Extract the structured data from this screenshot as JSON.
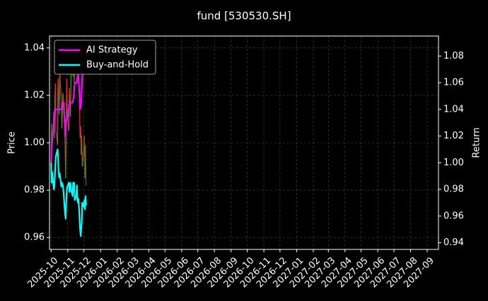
{
  "chart_data": {
    "type": "line",
    "title": "fund [530530.SH]",
    "ylabel_left": "Price",
    "ylabel_right": "Return",
    "grid": true,
    "legend_position": "top-left",
    "ylim_left": [
      0.955,
      1.045
    ],
    "ylim_right": [
      0.935,
      1.095
    ],
    "yticks_left": [
      "0.96",
      "0.98",
      "1.00",
      "1.02",
      "1.04"
    ],
    "yticks_right": [
      "0.94",
      "0.96",
      "0.98",
      "1.00",
      "1.02",
      "1.04",
      "1.06",
      "1.08"
    ],
    "xticks": [
      "2025-10",
      "2025-11",
      "2025-12",
      "2026-01",
      "2026-02",
      "2026-03",
      "2026-04",
      "2026-05",
      "2026-06",
      "2026-07",
      "2026-08",
      "2026-09",
      "2026-10",
      "2026-11",
      "2026-12",
      "2027-01",
      "2027-02",
      "2027-03",
      "2027-04",
      "2027-05",
      "2027-06",
      "2027-07",
      "2027-08",
      "2027-09"
    ],
    "xlim": [
      "2025-09-28",
      "2027-09-22"
    ],
    "price_colors": {
      "up": "#2ca02c",
      "down": "#d62728"
    },
    "price_series": {
      "dates": [
        "2025-10-01",
        "2025-10-02",
        "2025-10-03",
        "2025-10-06",
        "2025-10-07",
        "2025-10-08",
        "2025-10-09",
        "2025-10-10",
        "2025-10-13",
        "2025-10-14",
        "2025-10-15",
        "2025-10-16",
        "2025-10-17",
        "2025-10-20",
        "2025-10-21",
        "2025-10-22",
        "2025-10-23",
        "2025-10-24",
        "2025-10-27",
        "2025-10-28",
        "2025-10-29",
        "2025-10-30",
        "2025-10-31",
        "2025-11-03",
        "2025-11-04",
        "2025-11-05",
        "2025-11-06",
        "2025-11-07",
        "2025-11-10",
        "2025-11-11",
        "2025-11-12",
        "2025-11-13",
        "2025-11-14",
        "2025-11-17",
        "2025-11-18",
        "2025-11-19",
        "2025-11-20",
        "2025-11-21",
        "2025-11-24",
        "2025-11-25",
        "2025-11-26",
        "2025-11-27",
        "2025-11-28",
        "2025-12-01",
        "2025-12-02",
        "2025-12-03",
        "2025-12-04",
        "2025-12-05"
      ],
      "values": [
        0.993,
        1.008,
        0.998,
        1.013,
        1.002,
        1.019,
        1.025,
        1.005,
        0.999,
        1.027,
        1.021,
        1.012,
        1.03,
        1.018,
        1.006,
        1.013,
        1.021,
        1.019,
        0.999,
        0.985,
        1.003,
        1.027,
        1.012,
        1.005,
        1.023,
        1.017,
        1.011,
        1.029,
        1.032,
        1.028,
        1.04,
        1.025,
        1.038,
        1.029,
        1.031,
        1.034,
        1.028,
        1.033,
        1.002,
        1.007,
        0.995,
        1.003,
        0.99,
        0.997,
        1.003,
        0.985,
        0.999,
        0.982
      ]
    },
    "series": [
      {
        "name": "AI Strategy",
        "color": "#ff00ff",
        "x": [
          "2025-10-01",
          "2025-10-03",
          "2025-10-06",
          "2025-10-08",
          "2025-10-10",
          "2025-10-15",
          "2025-10-20",
          "2025-10-22",
          "2025-10-24",
          "2025-10-28",
          "2025-10-29",
          "2025-10-31",
          "2025-11-04",
          "2025-11-07",
          "2025-11-10",
          "2025-11-12",
          "2025-11-14",
          "2025-11-18",
          "2025-11-19",
          "2025-11-21",
          "2025-11-24",
          "2025-11-26",
          "2025-11-28",
          "2025-12-01",
          "2025-12-03",
          "2025-12-05"
        ],
        "y": [
          1.0,
          1.02,
          1.025,
          1.04,
          1.04,
          1.04,
          1.04,
          1.045,
          1.045,
          1.02,
          1.032,
          1.032,
          1.045,
          1.045,
          1.045,
          1.05,
          1.06,
          1.06,
          1.065,
          1.065,
          1.04,
          1.045,
          1.065,
          1.08,
          1.08,
          1.08
        ]
      },
      {
        "name": "Buy-and-Hold",
        "color": "#00ffff",
        "x": [
          "2025-10-01",
          "2025-10-02",
          "2025-10-03",
          "2025-10-06",
          "2025-10-07",
          "2025-10-08",
          "2025-10-09",
          "2025-10-10",
          "2025-10-13",
          "2025-10-14",
          "2025-10-15",
          "2025-10-16",
          "2025-10-17",
          "2025-10-20",
          "2025-10-21",
          "2025-10-22",
          "2025-10-23",
          "2025-10-24",
          "2025-10-27",
          "2025-10-28",
          "2025-10-29",
          "2025-10-30",
          "2025-10-31",
          "2025-11-03",
          "2025-11-04",
          "2025-11-05",
          "2025-11-06",
          "2025-11-07",
          "2025-11-10",
          "2025-11-11",
          "2025-11-12",
          "2025-11-13",
          "2025-11-14",
          "2025-11-17",
          "2025-11-18",
          "2025-11-19",
          "2025-11-20",
          "2025-11-21",
          "2025-11-24",
          "2025-11-25",
          "2025-11-26",
          "2025-11-27",
          "2025-11-28",
          "2025-12-01",
          "2025-12-02",
          "2025-12-03",
          "2025-12-04",
          "2025-12-05"
        ],
        "y": [
          1.0,
          0.985,
          0.993,
          0.98,
          0.982,
          0.99,
          1.0,
          1.005,
          1.01,
          1.003,
          0.993,
          0.989,
          0.992,
          0.982,
          0.985,
          0.984,
          0.983,
          0.978,
          0.962,
          0.958,
          0.968,
          0.978,
          0.982,
          0.985,
          0.978,
          0.983,
          0.985,
          0.98,
          0.975,
          0.985,
          0.98,
          0.985,
          0.972,
          0.975,
          0.983,
          0.972,
          0.97,
          0.973,
          0.95,
          0.945,
          0.95,
          0.955,
          0.97,
          0.967,
          0.972,
          0.965,
          0.975,
          0.968
        ]
      }
    ]
  }
}
